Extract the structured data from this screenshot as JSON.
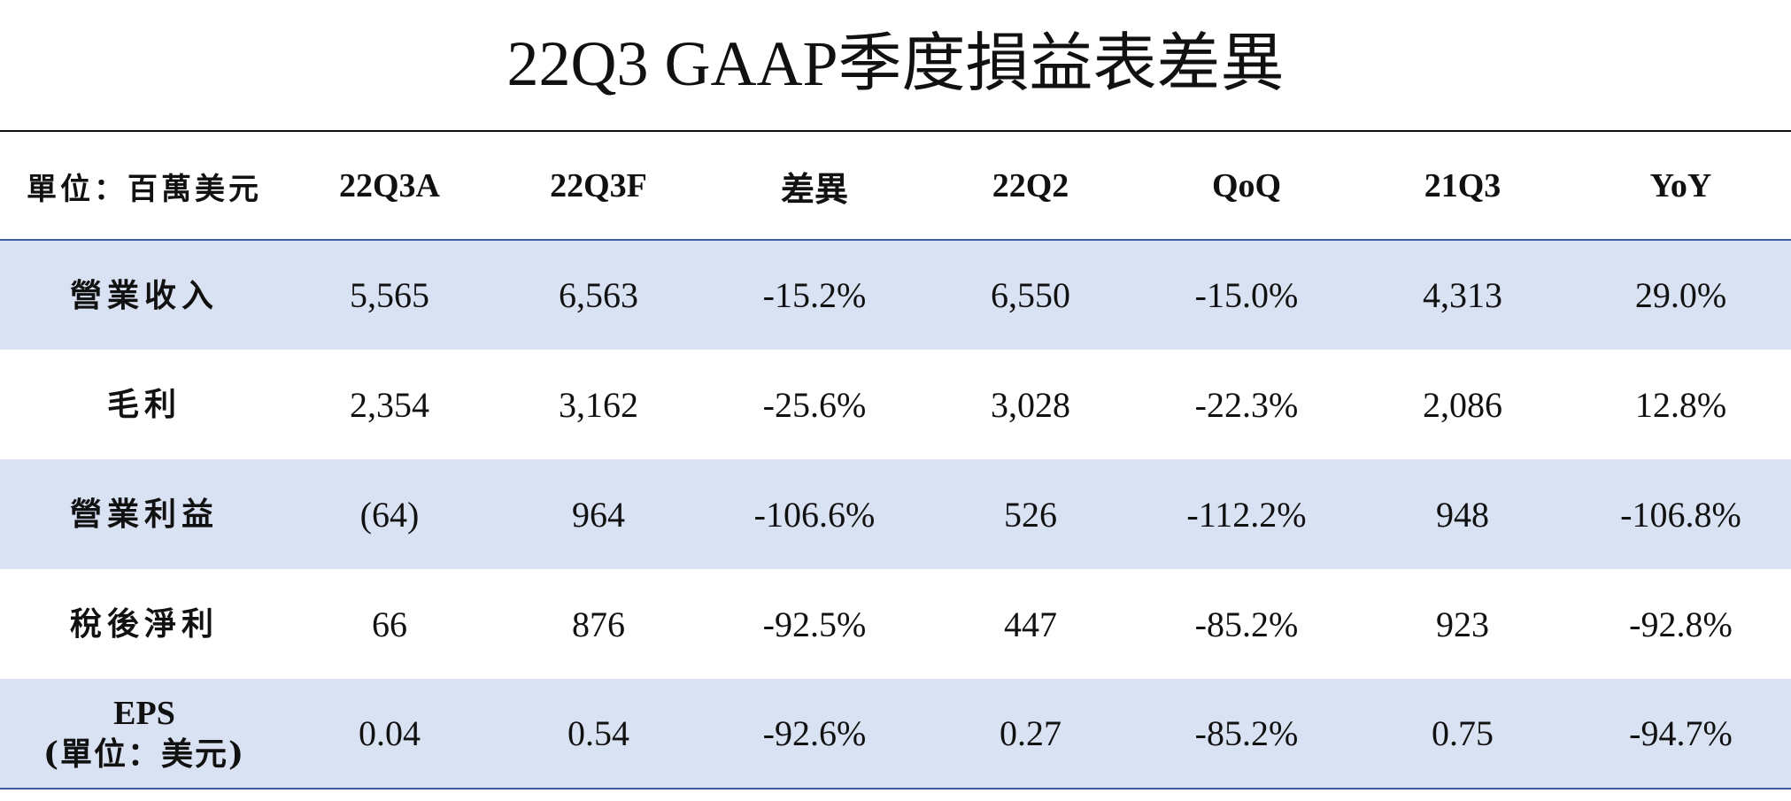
{
  "title": "22Q3 GAAP季度損益表差異",
  "header": {
    "unit": "單位：百萬美元",
    "columns": [
      "22Q3A",
      "22Q3F",
      "差異",
      "22Q2",
      "QoQ",
      "21Q3",
      "YoY"
    ]
  },
  "rows": [
    {
      "label": "營業收入",
      "values": [
        "5,565",
        "6,563",
        "-15.2%",
        "6,550",
        "-15.0%",
        "4,313",
        "29.0%"
      ]
    },
    {
      "label": "毛利",
      "values": [
        "2,354",
        "3,162",
        "-25.6%",
        "3,028",
        "-22.3%",
        "2,086",
        "12.8%"
      ]
    },
    {
      "label": "營業利益",
      "values": [
        "(64)",
        "964",
        "-106.6%",
        "526",
        "-112.2%",
        "948",
        "-106.8%"
      ]
    },
    {
      "label": "稅後淨利",
      "values": [
        "66",
        "876",
        "-92.5%",
        "447",
        "-85.2%",
        "923",
        "-92.8%"
      ]
    },
    {
      "label": "EPS",
      "label_sub": "(單位：美元)",
      "values": [
        "0.04",
        "0.54",
        "-92.6%",
        "0.27",
        "-85.2%",
        "0.75",
        "-94.7%"
      ]
    }
  ],
  "colors": {
    "shade": "#d9e2f3",
    "rule": "#3d5c9c"
  }
}
